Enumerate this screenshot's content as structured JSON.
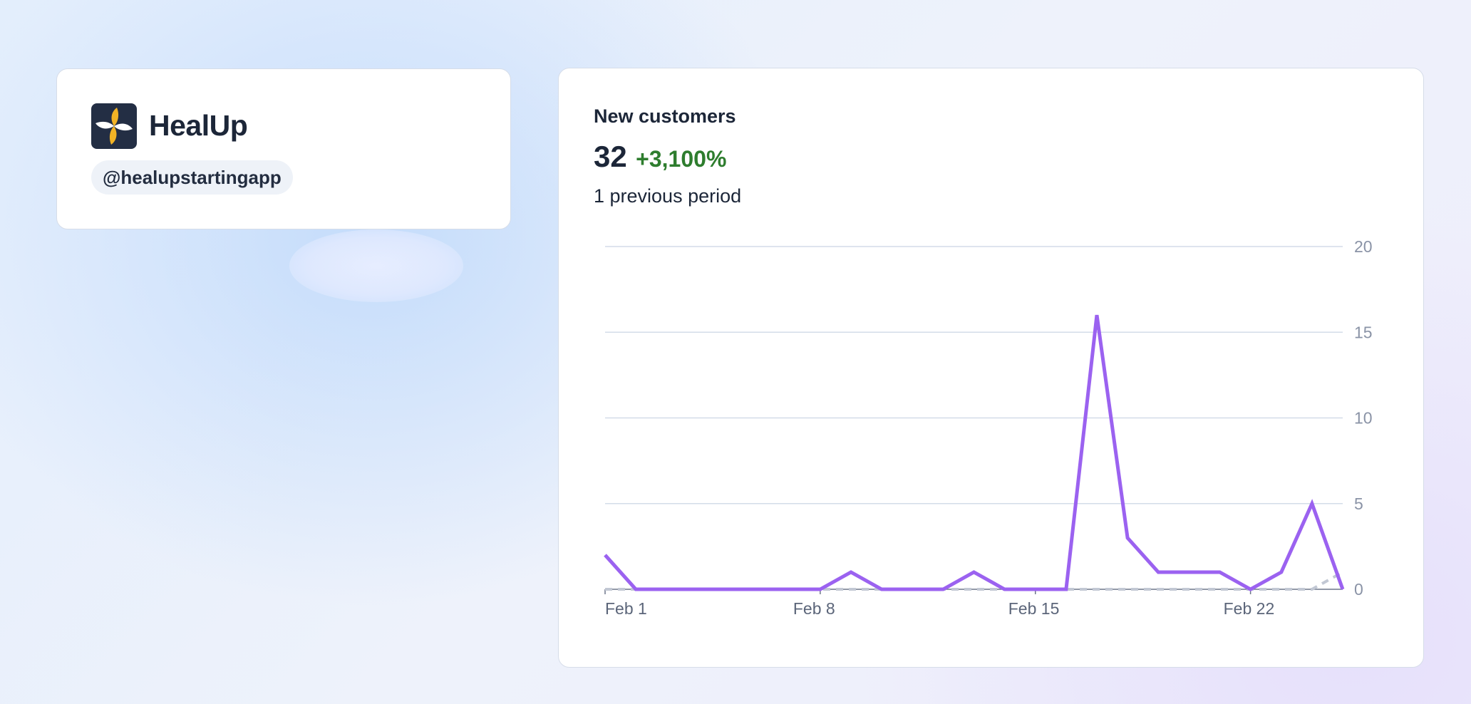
{
  "brand": {
    "name": "HealUp",
    "handle": "@healupstartingapp",
    "logo_icon": "pinwheel-logo-icon",
    "logo_bg": "#232e44",
    "logo_accent": "#f2b325"
  },
  "metric": {
    "title": "New customers",
    "value": "32",
    "change": "+3,100%",
    "change_color": "#2e7d2e",
    "previous": "1 previous period"
  },
  "chart_data": {
    "type": "line",
    "x": [
      "Feb 1",
      "Feb 2",
      "Feb 3",
      "Feb 4",
      "Feb 5",
      "Feb 6",
      "Feb 7",
      "Feb 8",
      "Feb 9",
      "Feb 10",
      "Feb 11",
      "Feb 12",
      "Feb 13",
      "Feb 14",
      "Feb 15",
      "Feb 16",
      "Feb 17",
      "Feb 18",
      "Feb 19",
      "Feb 20",
      "Feb 21",
      "Feb 22",
      "Feb 23",
      "Feb 24",
      "Feb 25"
    ],
    "series": [
      {
        "values": [
          2,
          0,
          0,
          0,
          0,
          0,
          0,
          0,
          1,
          0,
          0,
          0,
          1,
          0,
          0,
          0,
          16,
          3,
          1,
          1,
          1,
          0,
          1,
          5,
          0
        ],
        "color": "#9b62f0",
        "style": "solid"
      },
      {
        "values": [
          0,
          0,
          0,
          0,
          0,
          0,
          0,
          0,
          0,
          0,
          0,
          0,
          0,
          0,
          0,
          0,
          0,
          0,
          0,
          0,
          0,
          0,
          0,
          0,
          1
        ],
        "color": "#c2c8d4",
        "style": "dashed"
      }
    ],
    "x_tick_labels": [
      "Feb 1",
      "Feb 8",
      "Feb 15",
      "Feb 22"
    ],
    "y_ticks": [
      0,
      5,
      10,
      15,
      20
    ],
    "ylim": [
      0,
      20
    ],
    "y_axis_position": "right",
    "grid": true
  }
}
